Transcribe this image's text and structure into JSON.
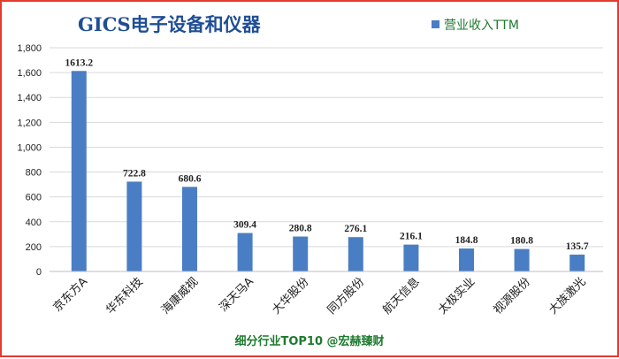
{
  "chart_data": {
    "type": "bar",
    "title": "GICS电子设备和仪器",
    "categories": [
      "京东方A",
      "华东科技",
      "海康威视",
      "深天马A",
      "大华股份",
      "同方股份",
      "航天信息",
      "太极实业",
      "视源股份",
      "大族激光"
    ],
    "series": [
      {
        "name": "营业收入TTM",
        "values": [
          1613.2,
          722.8,
          680.6,
          309.4,
          280.8,
          276.1,
          216.1,
          184.8,
          180.8,
          135.7
        ]
      }
    ],
    "data_labels": [
      "1613.2",
      "722.8",
      "680.6",
      "309.4",
      "280.8",
      "276.1",
      "216.1",
      "184.8",
      "180.8",
      "135.7"
    ],
    "y_ticks": [
      "0",
      "200",
      "400",
      "600",
      "800",
      "1,000",
      "1,200",
      "1,400",
      "1,600",
      "1,800"
    ],
    "ylim": [
      0,
      1800
    ],
    "xlabel": "",
    "ylabel": "",
    "grid": true,
    "legend_position": "top-right",
    "bar_color": "#4a7ec4",
    "footer": "细分行业TOP10 @宏赫臻财"
  }
}
